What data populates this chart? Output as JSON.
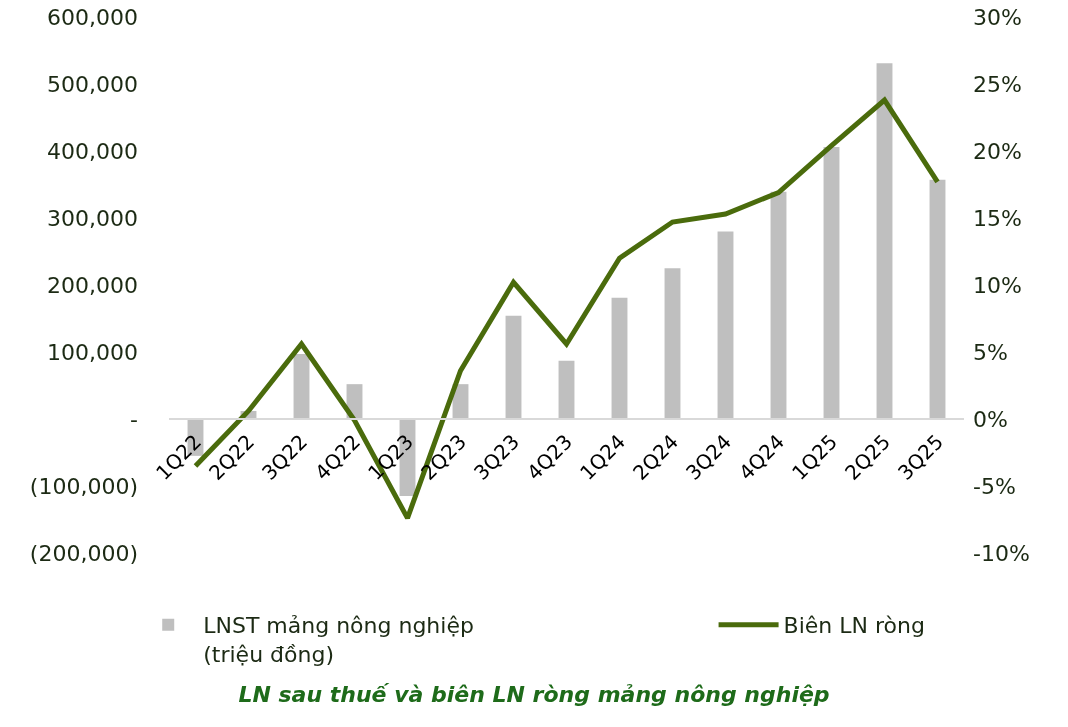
{
  "chart_data": {
    "type": "bar",
    "title": "LN sau thuế và biên LN ròng mảng nông nghiệp",
    "categories": [
      "1Q22",
      "2Q22",
      "3Q22",
      "4Q22",
      "1Q23",
      "2Q23",
      "3Q23",
      "4Q23",
      "1Q24",
      "2Q24",
      "3Q24",
      "4Q24",
      "1Q25",
      "2Q25",
      "3Q25"
    ],
    "series": [
      {
        "name": "LNST mảng nông nghiệp (triệu đồng)",
        "color": "#bfbfbf",
        "values": [
          -55000,
          12000,
          97000,
          52000,
          -115000,
          52000,
          154000,
          87000,
          181000,
          225000,
          280000,
          339000,
          406000,
          531000,
          357000
        ]
      },
      {
        "name": "Biên LN ròng",
        "type": "line",
        "axis": "y2",
        "color": "#4a6b0c",
        "values": [
          -3.5,
          0.6,
          5.6,
          -0.1,
          -7.4,
          3.6,
          10.2,
          5.6,
          12.0,
          14.7,
          15.3,
          16.9,
          20.4,
          23.8,
          17.7
        ]
      }
    ],
    "ylim": [
      -200000,
      600000
    ],
    "yticks": [
      {
        "value": -200000,
        "label": "(200,000)"
      },
      {
        "value": -100000,
        "label": "(100,000)"
      },
      {
        "value": 0,
        "label": "-"
      },
      {
        "value": 100000,
        "label": "100,000"
      },
      {
        "value": 200000,
        "label": "200,000"
      },
      {
        "value": 300000,
        "label": "300,000"
      },
      {
        "value": 400000,
        "label": "400,000"
      },
      {
        "value": 500000,
        "label": "500,000"
      },
      {
        "value": 600000,
        "label": "600,000"
      }
    ],
    "y2lim": [
      -10,
      30
    ],
    "y2ticks": [
      {
        "value": -10,
        "label": "-10%"
      },
      {
        "value": -5,
        "label": "-5%"
      },
      {
        "value": 0,
        "label": "0%"
      },
      {
        "value": 5,
        "label": "5%"
      },
      {
        "value": 10,
        "label": "10%"
      },
      {
        "value": 15,
        "label": "15%"
      },
      {
        "value": 20,
        "label": "20%"
      },
      {
        "value": 25,
        "label": "25%"
      },
      {
        "value": 30,
        "label": "30%"
      }
    ],
    "grid": false,
    "legend": "bottom"
  }
}
